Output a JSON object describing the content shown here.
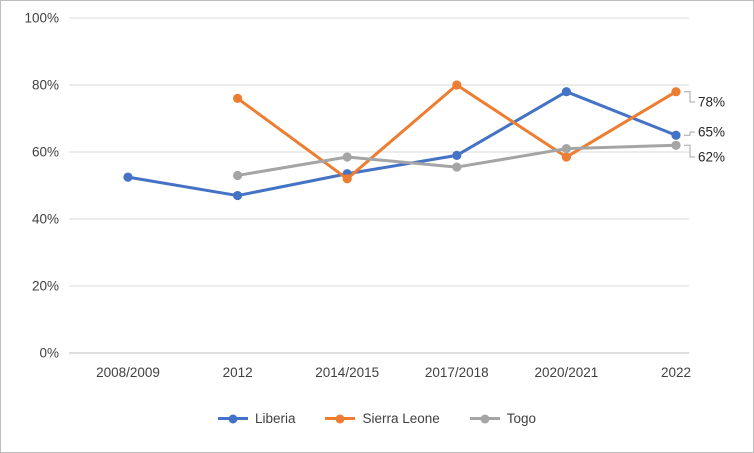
{
  "chart_data": {
    "type": "line",
    "categories": [
      "2008/2009",
      "2012",
      "2014/2015",
      "2017/2018",
      "2020/2021",
      "2022"
    ],
    "series": [
      {
        "name": "Liberia",
        "color": "#4472C4",
        "values": [
          52.5,
          47,
          53.5,
          59,
          78,
          65
        ]
      },
      {
        "name": "Sierra Leone",
        "color": "#ED7D31",
        "values": [
          null,
          76,
          52,
          80,
          58.5,
          78
        ]
      },
      {
        "name": "Togo",
        "color": "#A5A5A5",
        "values": [
          null,
          53,
          58.5,
          55.5,
          61,
          62
        ]
      }
    ],
    "ylim": [
      0,
      100
    ],
    "yticks": [
      {
        "value": 0,
        "label": "0%"
      },
      {
        "value": 20,
        "label": "20%"
      },
      {
        "value": 40,
        "label": "40%"
      },
      {
        "value": 60,
        "label": "60%"
      },
      {
        "value": 80,
        "label": "80%"
      },
      {
        "value": 100,
        "label": "100%"
      }
    ],
    "grid": true,
    "legend_position": "bottom",
    "end_labels": [
      {
        "label": "78%",
        "series": "Sierra Leone"
      },
      {
        "label": "65%",
        "series": "Liberia"
      },
      {
        "label": "62%",
        "series": "Togo"
      }
    ],
    "colors": {
      "grid": "#D9D9D9",
      "axis": "#BFBFBF",
      "tick_text": "#404040",
      "end_label_text": "#262626",
      "leader": "#A6A6A6"
    }
  }
}
